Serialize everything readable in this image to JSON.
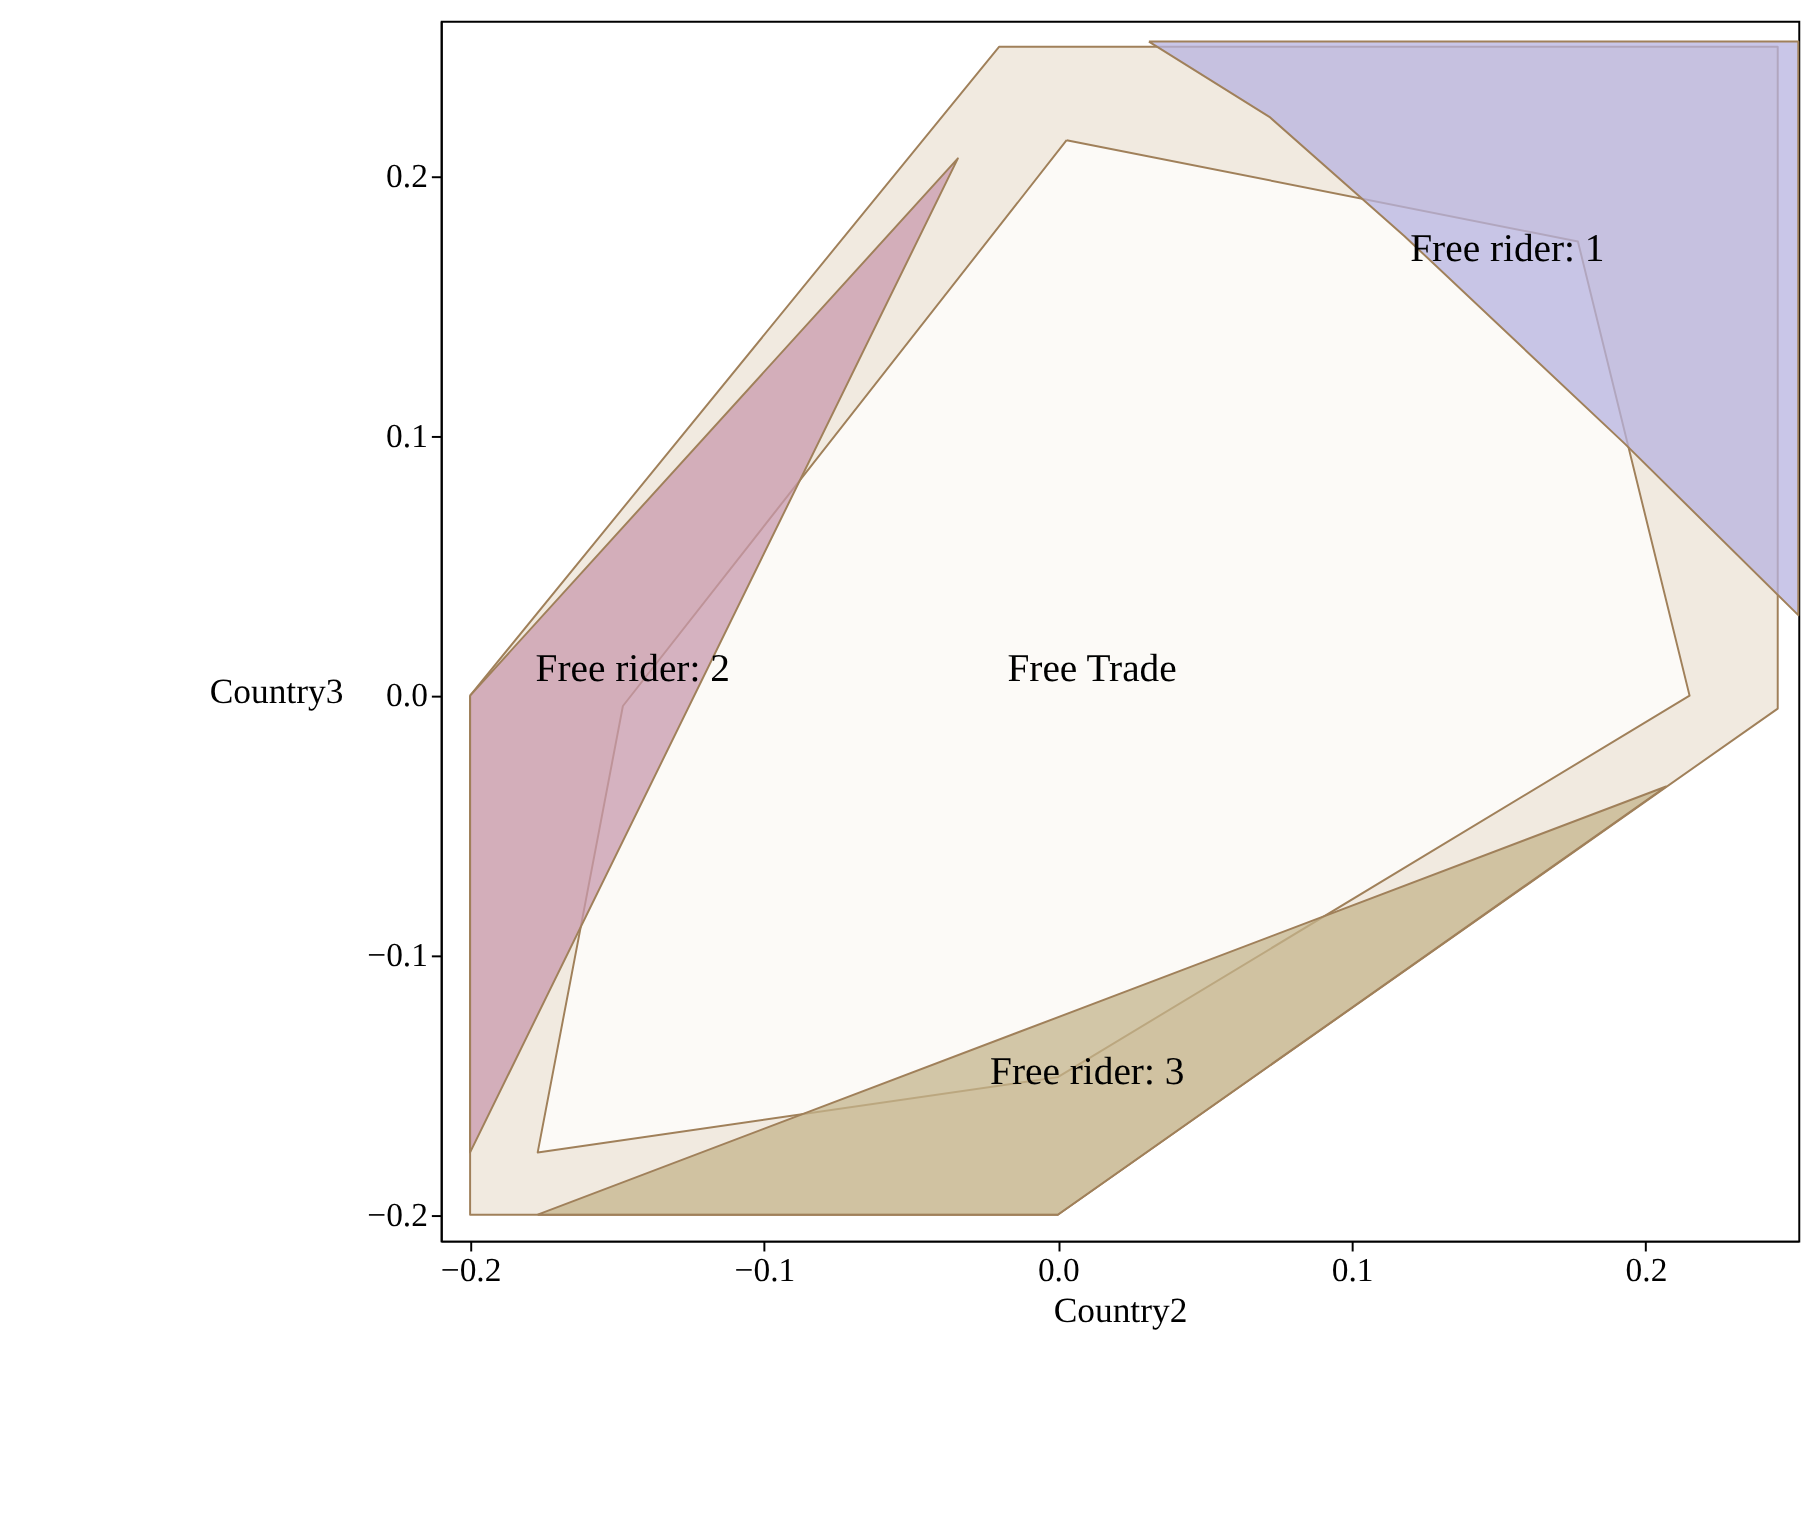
{
  "chart_data": {
    "type": "area",
    "xlabel": "Country2",
    "ylabel": "Country3",
    "xlim": [
      -0.21,
      0.252
    ],
    "ylim": [
      -0.21,
      0.26
    ],
    "xticks": [
      -0.2,
      -0.1,
      {
        "value": 0,
        "label": "0.0"
      },
      0.1,
      0.2
    ],
    "yticks": [
      -0.2,
      -0.1,
      {
        "value": 0,
        "label": "0.0"
      },
      0.1,
      0.2
    ],
    "grid": false,
    "series": [
      {
        "color": "#ece3d6",
        "x": [
          -0.2,
          -0.02,
          0.245,
          0.245,
          0.0,
          -0.2,
          -0.2
        ],
        "values": [
          0.0,
          0.25,
          0.25,
          -0.005,
          -0.2,
          -0.2,
          0.0
        ]
      },
      {
        "name": "Free Trade",
        "color": "#ffffff",
        "x": [
          0.003,
          0.177,
          0.215,
          0.0,
          -0.177,
          -0.148,
          0.003
        ],
        "values": [
          0.214,
          0.175,
          0.0,
          -0.147,
          -0.176,
          -0.004,
          0.214
        ]
      },
      {
        "name": "Free rider: 1",
        "color": "#b7b3e0",
        "x": [
          0.031,
          0.252,
          0.252,
          0.193,
          0.118,
          0.072,
          0.031
        ],
        "values": [
          0.252,
          0.252,
          0.031,
          0.097,
          0.177,
          0.223,
          0.252
        ]
      },
      {
        "name": "Free rider: 2",
        "color": "#c89aae",
        "x": [
          -0.2,
          -0.034,
          -0.2,
          -0.2
        ],
        "values": [
          0.0,
          0.207,
          -0.176,
          0.0
        ]
      },
      {
        "name": "Free rider: 3",
        "color": "#c4b48c",
        "x": [
          -0.177,
          0.0,
          0.207,
          -0.177
        ],
        "values": [
          -0.2,
          -0.2,
          -0.035,
          -0.2
        ]
      }
    ]
  }
}
